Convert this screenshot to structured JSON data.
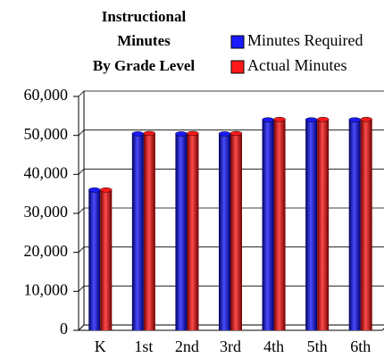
{
  "chart_data": {
    "type": "bar",
    "title": [
      "Instructional",
      "Minutes",
      "By Grade Level"
    ],
    "categories": [
      "K",
      "1st",
      "2nd",
      "3rd",
      "4th",
      "5th",
      "6th"
    ],
    "series": [
      {
        "name": "Minutes Required",
        "color": "#1a1aff",
        "values": [
          36000,
          50400,
          50400,
          50400,
          54000,
          54000,
          54000
        ]
      },
      {
        "name": "Actual Minutes",
        "color": "#ff1a1a",
        "values": [
          36000,
          50500,
          50500,
          50500,
          54100,
          54100,
          54100
        ]
      }
    ],
    "ylim": [
      0,
      60000
    ],
    "yticks": [
      {
        "value": 0,
        "label": "0"
      },
      {
        "value": 10000,
        "label": "10,000"
      },
      {
        "value": 20000,
        "label": "20,000"
      },
      {
        "value": 30000,
        "label": "30,000"
      },
      {
        "value": 40000,
        "label": "40,000"
      },
      {
        "value": 50000,
        "label": "50,000"
      },
      {
        "value": 60000,
        "label": "60,000"
      }
    ],
    "grid": true
  }
}
